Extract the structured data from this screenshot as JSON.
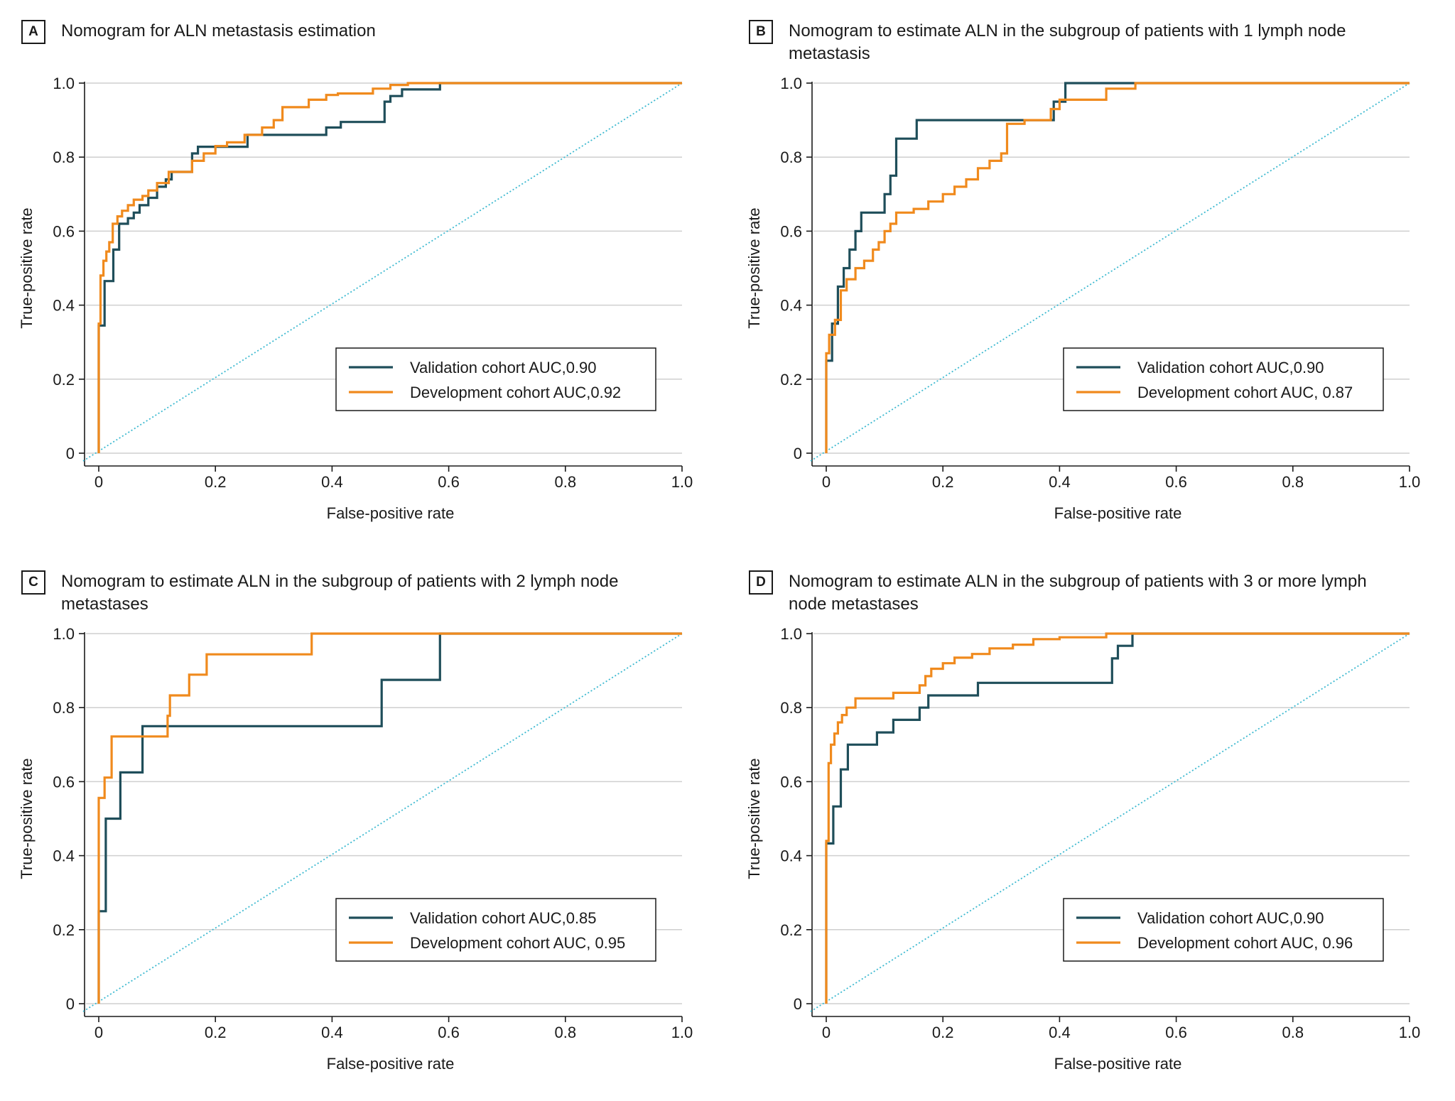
{
  "colors": {
    "validation": "#1f4e5a",
    "development": "#f08a1d",
    "diagonal": "#3cb9d0",
    "grid": "#cfcfcf",
    "axis": "#1a1a1a"
  },
  "axis_labels": {
    "xlabel": "False-positive rate",
    "ylabel": "True-positive rate",
    "x_ticks": [
      "0",
      "0.2",
      "0.4",
      "0.6",
      "0.8",
      "1.0"
    ],
    "y_ticks": [
      "0",
      "0.2",
      "0.4",
      "0.6",
      "0.8",
      "1.0"
    ]
  },
  "chart_data": [
    {
      "type": "line",
      "panel": "A",
      "title": "Nomogram for ALN metastasis estimation",
      "xlabel": "False-positive rate",
      "ylabel": "True-positive rate",
      "xlim": [
        0,
        1
      ],
      "ylim": [
        0,
        1
      ],
      "legend": [
        "Validation cohort AUC,0.90",
        "Development cohort AUC,0.92"
      ],
      "series": [
        {
          "name": "Validation cohort AUC,0.90",
          "key": "validation",
          "x": [
            0,
            0,
            0.01,
            0.01,
            0.025,
            0.025,
            0.035,
            0.035,
            0.05,
            0.05,
            0.06,
            0.06,
            0.07,
            0.07,
            0.085,
            0.085,
            0.1,
            0.1,
            0.115,
            0.115,
            0.125,
            0.125,
            0.16,
            0.16,
            0.17,
            0.17,
            0.255,
            0.255,
            0.39,
            0.39,
            0.415,
            0.415,
            0.49,
            0.49,
            0.5,
            0.5,
            0.52,
            0.52,
            0.585,
            0.585,
            1.0
          ],
          "y": [
            0,
            0.345,
            0.345,
            0.465,
            0.465,
            0.55,
            0.55,
            0.62,
            0.62,
            0.635,
            0.635,
            0.65,
            0.65,
            0.67,
            0.67,
            0.69,
            0.69,
            0.72,
            0.72,
            0.74,
            0.74,
            0.76,
            0.76,
            0.81,
            0.81,
            0.828,
            0.828,
            0.86,
            0.86,
            0.88,
            0.88,
            0.895,
            0.895,
            0.95,
            0.95,
            0.965,
            0.965,
            0.983,
            0.983,
            1.0,
            1.0
          ]
        },
        {
          "name": "Development cohort AUC,0.92",
          "key": "development",
          "x": [
            0,
            0,
            0.003,
            0.003,
            0.008,
            0.008,
            0.013,
            0.013,
            0.018,
            0.018,
            0.024,
            0.024,
            0.032,
            0.032,
            0.04,
            0.04,
            0.05,
            0.05,
            0.06,
            0.06,
            0.075,
            0.075,
            0.085,
            0.085,
            0.1,
            0.1,
            0.12,
            0.12,
            0.16,
            0.16,
            0.18,
            0.18,
            0.2,
            0.2,
            0.22,
            0.22,
            0.25,
            0.25,
            0.28,
            0.28,
            0.3,
            0.3,
            0.315,
            0.315,
            0.36,
            0.36,
            0.39,
            0.39,
            0.41,
            0.41,
            0.47,
            0.47,
            0.5,
            0.5,
            0.53,
            0.53,
            0.58,
            1.0
          ],
          "y": [
            0,
            0.35,
            0.35,
            0.48,
            0.48,
            0.52,
            0.52,
            0.545,
            0.545,
            0.57,
            0.57,
            0.62,
            0.62,
            0.64,
            0.64,
            0.655,
            0.655,
            0.67,
            0.67,
            0.685,
            0.685,
            0.695,
            0.695,
            0.71,
            0.71,
            0.73,
            0.73,
            0.76,
            0.76,
            0.79,
            0.79,
            0.81,
            0.81,
            0.83,
            0.83,
            0.84,
            0.84,
            0.86,
            0.86,
            0.88,
            0.88,
            0.9,
            0.9,
            0.935,
            0.935,
            0.955,
            0.955,
            0.968,
            0.968,
            0.972,
            0.972,
            0.985,
            0.985,
            0.995,
            0.995,
            1.0,
            1.0,
            1.0
          ]
        }
      ]
    },
    {
      "type": "line",
      "panel": "B",
      "title": "Nomogram to estimate ALN in the subgroup of patients with 1 lymph node metastasis",
      "xlabel": "False-positive rate",
      "ylabel": "True-positive rate",
      "xlim": [
        0,
        1
      ],
      "ylim": [
        0,
        1
      ],
      "legend": [
        "Validation cohort AUC,0.90",
        "Development cohort AUC, 0.87"
      ],
      "series": [
        {
          "name": "Validation cohort AUC,0.90",
          "key": "validation",
          "x": [
            0,
            0,
            0.01,
            0.01,
            0.02,
            0.02,
            0.03,
            0.03,
            0.04,
            0.04,
            0.05,
            0.05,
            0.06,
            0.06,
            0.1,
            0.1,
            0.11,
            0.11,
            0.12,
            0.12,
            0.155,
            0.155,
            0.26,
            0.26,
            0.39,
            0.39,
            0.41,
            0.41,
            1.0
          ],
          "y": [
            0,
            0.25,
            0.25,
            0.35,
            0.35,
            0.45,
            0.45,
            0.5,
            0.5,
            0.55,
            0.55,
            0.6,
            0.6,
            0.65,
            0.65,
            0.7,
            0.7,
            0.75,
            0.75,
            0.85,
            0.85,
            0.9,
            0.9,
            0.9,
            0.9,
            0.95,
            0.95,
            1.0,
            1.0
          ]
        },
        {
          "name": "Development cohort AUC, 0.87",
          "key": "development",
          "x": [
            0,
            0,
            0.005,
            0.005,
            0.015,
            0.015,
            0.025,
            0.025,
            0.035,
            0.035,
            0.05,
            0.05,
            0.065,
            0.065,
            0.08,
            0.08,
            0.09,
            0.09,
            0.1,
            0.1,
            0.11,
            0.11,
            0.12,
            0.12,
            0.15,
            0.15,
            0.175,
            0.175,
            0.2,
            0.2,
            0.22,
            0.22,
            0.24,
            0.24,
            0.26,
            0.26,
            0.28,
            0.28,
            0.3,
            0.3,
            0.31,
            0.31,
            0.34,
            0.34,
            0.385,
            0.385,
            0.4,
            0.4,
            0.48,
            0.48,
            0.53,
            0.53,
            1.0
          ],
          "y": [
            0,
            0.27,
            0.27,
            0.32,
            0.32,
            0.36,
            0.36,
            0.44,
            0.44,
            0.47,
            0.47,
            0.5,
            0.5,
            0.52,
            0.52,
            0.55,
            0.55,
            0.57,
            0.57,
            0.6,
            0.6,
            0.62,
            0.62,
            0.65,
            0.65,
            0.66,
            0.66,
            0.68,
            0.68,
            0.7,
            0.7,
            0.72,
            0.72,
            0.74,
            0.74,
            0.77,
            0.77,
            0.79,
            0.79,
            0.81,
            0.81,
            0.89,
            0.89,
            0.9,
            0.9,
            0.93,
            0.93,
            0.955,
            0.955,
            0.985,
            0.985,
            1.0,
            1.0
          ]
        }
      ]
    },
    {
      "type": "line",
      "panel": "C",
      "title": "Nomogram to estimate ALN in the subgroup of patients with 2 lymph node metastases",
      "xlabel": "False-positive rate",
      "ylabel": "True-positive rate",
      "xlim": [
        0,
        1
      ],
      "ylim": [
        0,
        1
      ],
      "legend": [
        "Validation cohort AUC,0.85",
        "Development cohort AUC, 0.95"
      ],
      "series": [
        {
          "name": "Validation cohort AUC,0.85",
          "key": "validation",
          "x": [
            0,
            0,
            0.012,
            0.012,
            0.037,
            0.037,
            0.075,
            0.075,
            0.485,
            0.485,
            0.585,
            0.585,
            1.0
          ],
          "y": [
            0,
            0.25,
            0.25,
            0.5,
            0.5,
            0.625,
            0.625,
            0.75,
            0.75,
            0.875,
            0.875,
            1.0,
            1.0
          ]
        },
        {
          "name": "Development cohort AUC, 0.95",
          "key": "development",
          "x": [
            0,
            0,
            0.01,
            0.01,
            0.022,
            0.022,
            0.118,
            0.118,
            0.122,
            0.122,
            0.155,
            0.155,
            0.185,
            0.185,
            0.365,
            0.365,
            1.0
          ],
          "y": [
            0,
            0.556,
            0.556,
            0.611,
            0.611,
            0.722,
            0.722,
            0.778,
            0.778,
            0.833,
            0.833,
            0.889,
            0.889,
            0.944,
            0.944,
            1.0,
            1.0
          ]
        }
      ]
    },
    {
      "type": "line",
      "panel": "D",
      "title": "Nomogram to estimate ALN in the subgroup of patients with 3 or more lymph node metastases",
      "xlabel": "False-positive rate",
      "ylabel": "True-positive rate",
      "xlim": [
        0,
        1
      ],
      "ylim": [
        0,
        1
      ],
      "legend": [
        "Validation cohort AUC,0.90",
        "Development cohort AUC, 0.96"
      ],
      "series": [
        {
          "name": "Validation cohort AUC,0.90",
          "key": "validation",
          "x": [
            0,
            0,
            0.012,
            0.012,
            0.025,
            0.025,
            0.037,
            0.037,
            0.087,
            0.087,
            0.115,
            0.115,
            0.16,
            0.16,
            0.175,
            0.175,
            0.26,
            0.26,
            0.49,
            0.49,
            0.5,
            0.5,
            0.525,
            0.525,
            1.0
          ],
          "y": [
            0,
            0.433,
            0.433,
            0.533,
            0.533,
            0.633,
            0.633,
            0.7,
            0.7,
            0.733,
            0.733,
            0.767,
            0.767,
            0.8,
            0.8,
            0.833,
            0.833,
            0.867,
            0.867,
            0.933,
            0.933,
            0.967,
            0.967,
            1.0,
            1.0
          ]
        },
        {
          "name": "Development cohort AUC, 0.96",
          "key": "development",
          "x": [
            0,
            0,
            0.004,
            0.004,
            0.008,
            0.008,
            0.014,
            0.014,
            0.02,
            0.02,
            0.027,
            0.027,
            0.035,
            0.035,
            0.05,
            0.05,
            0.115,
            0.115,
            0.16,
            0.16,
            0.17,
            0.17,
            0.18,
            0.18,
            0.2,
            0.2,
            0.22,
            0.22,
            0.25,
            0.25,
            0.28,
            0.28,
            0.32,
            0.32,
            0.355,
            0.355,
            0.4,
            0.4,
            0.48,
            0.48,
            1.0
          ],
          "y": [
            0,
            0.44,
            0.44,
            0.65,
            0.65,
            0.7,
            0.7,
            0.73,
            0.73,
            0.76,
            0.76,
            0.78,
            0.78,
            0.8,
            0.8,
            0.825,
            0.825,
            0.84,
            0.84,
            0.86,
            0.86,
            0.885,
            0.885,
            0.905,
            0.905,
            0.92,
            0.92,
            0.935,
            0.935,
            0.945,
            0.945,
            0.96,
            0.96,
            0.97,
            0.97,
            0.985,
            0.985,
            0.99,
            0.99,
            1.0,
            1.0
          ]
        }
      ]
    }
  ]
}
